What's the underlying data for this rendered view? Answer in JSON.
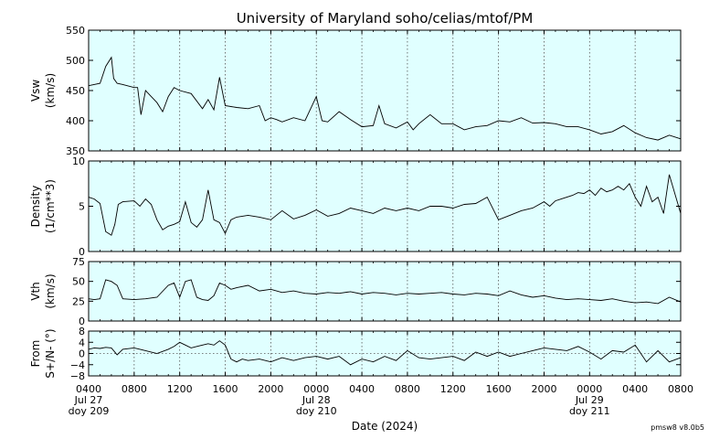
{
  "chart_data": {
    "type": "line",
    "title": "University of Maryland  soho/celias/mtof/PM",
    "xlabel": "Date (2024)",
    "version": "pmsw8 v8.0b5",
    "x_ticks": [
      {
        "label": "0400",
        "sub1": "Jul 27",
        "sub2": "doy 209"
      },
      {
        "label": "0800"
      },
      {
        "label": "1200"
      },
      {
        "label": "1600"
      },
      {
        "label": "2000"
      },
      {
        "label": "0000",
        "sub1": "Jul 28",
        "sub2": "doy 210"
      },
      {
        "label": "0400"
      },
      {
        "label": "0800"
      },
      {
        "label": "1200"
      },
      {
        "label": "1600"
      },
      {
        "label": "2000"
      },
      {
        "label": "0000",
        "sub1": "Jul 29",
        "sub2": "doy 211"
      },
      {
        "label": "0400"
      },
      {
        "label": "0800"
      }
    ],
    "x_range_hours": [
      0,
      52
    ],
    "panels": [
      {
        "ylabel": "Vsw",
        "yunit": "(km/s)",
        "ylim": [
          350,
          550
        ],
        "yticks": [
          "350",
          "400",
          "450",
          "500",
          "550"
        ],
        "ytick_values": [
          350,
          400,
          450,
          500,
          550
        ],
        "zero_line": false,
        "x": [
          0,
          1,
          1.5,
          2,
          2.2,
          2.5,
          3,
          4,
          4.3,
          4.6,
          5,
          5.5,
          6,
          6.5,
          7,
          7.5,
          8,
          9,
          10,
          10.5,
          11,
          11.5,
          12,
          13,
          14,
          15,
          15.5,
          16,
          16.5,
          17,
          18,
          19,
          20,
          20.5,
          21,
          22,
          23,
          24,
          25,
          25.5,
          26,
          27,
          28,
          28.5,
          29,
          30,
          31,
          32,
          33,
          34,
          35,
          36,
          37,
          38,
          39,
          40,
          41,
          42,
          43,
          44,
          45,
          46,
          47,
          48,
          49,
          50,
          51,
          52
        ],
        "y": [
          458,
          462,
          490,
          505,
          470,
          462,
          460,
          455,
          455,
          410,
          450,
          440,
          430,
          415,
          440,
          455,
          450,
          445,
          420,
          435,
          418,
          472,
          425,
          422,
          420,
          425,
          400,
          405,
          402,
          398,
          405,
          400,
          440,
          400,
          398,
          415,
          402,
          390,
          392,
          425,
          395,
          388,
          398,
          385,
          395,
          410,
          395,
          395,
          385,
          390,
          392,
          400,
          398,
          405,
          396,
          397,
          395,
          390,
          390,
          385,
          378,
          382,
          392,
          380,
          372,
          368,
          376,
          370
        ]
      },
      {
        "ylabel": "Density",
        "yunit": "(1/cm**3)",
        "ylim": [
          0,
          10
        ],
        "yticks": [
          "0",
          "5",
          "10"
        ],
        "ytick_values": [
          0,
          5,
          10
        ],
        "zero_line": false,
        "x": [
          0,
          0.5,
          1,
          1.5,
          2,
          2.3,
          2.6,
          3,
          4,
          4.5,
          5,
          5.5,
          6,
          6.5,
          7,
          7.5,
          8,
          8.5,
          9,
          9.5,
          10,
          10.5,
          11,
          11.5,
          12,
          12.5,
          13,
          14,
          15,
          16,
          17,
          18,
          19,
          20,
          21,
          22,
          23,
          24,
          25,
          26,
          27,
          28,
          29,
          30,
          31,
          32,
          33,
          34,
          35,
          36,
          37,
          38,
          39,
          40,
          40.5,
          41,
          41.5,
          42,
          42.5,
          43,
          43.5,
          44,
          44.5,
          45,
          45.5,
          46,
          46.5,
          47,
          47.5,
          48,
          48.5,
          49,
          49.5,
          50,
          50.5,
          51,
          52
        ],
        "y": [
          6.0,
          5.8,
          5.3,
          2.2,
          1.8,
          3.0,
          5.2,
          5.5,
          5.6,
          5.0,
          5.8,
          5.2,
          3.5,
          2.4,
          2.8,
          3.0,
          3.3,
          5.5,
          3.2,
          2.7,
          3.5,
          6.8,
          3.5,
          3.2,
          2.0,
          3.5,
          3.8,
          4.0,
          3.8,
          3.5,
          4.5,
          3.6,
          4.0,
          4.6,
          3.9,
          4.2,
          4.8,
          4.5,
          4.2,
          4.8,
          4.5,
          4.8,
          4.5,
          5.0,
          5.0,
          4.8,
          5.2,
          5.3,
          6.0,
          3.5,
          4.0,
          4.5,
          4.8,
          5.5,
          5.0,
          5.6,
          5.8,
          6.0,
          6.2,
          6.5,
          6.4,
          6.8,
          6.2,
          7.0,
          6.6,
          6.8,
          7.2,
          6.8,
          7.5,
          6.0,
          5.0,
          7.2,
          5.5,
          6.0,
          4.2,
          8.5,
          4.2
        ]
      },
      {
        "ylabel": "Vth",
        "yunit": "(km/s)",
        "ylim": [
          0,
          75
        ],
        "yticks": [
          "0",
          "25",
          "50",
          "75"
        ],
        "ytick_values": [
          0,
          25,
          50,
          75
        ],
        "zero_line": false,
        "x": [
          0,
          0.5,
          1,
          1.5,
          2,
          2.5,
          3,
          4,
          5,
          6,
          7,
          7.5,
          8,
          8.5,
          9,
          9.5,
          10,
          10.5,
          11,
          11.5,
          12,
          12.5,
          13,
          14,
          15,
          16,
          17,
          18,
          19,
          20,
          21,
          22,
          23,
          24,
          25,
          26,
          27,
          28,
          29,
          30,
          31,
          32,
          33,
          34,
          35,
          36,
          37,
          38,
          39,
          40,
          41,
          42,
          43,
          44,
          45,
          46,
          47,
          48,
          49,
          50,
          51,
          52
        ],
        "y": [
          28,
          27,
          28,
          52,
          50,
          45,
          28,
          27,
          28,
          30,
          45,
          48,
          30,
          50,
          52,
          30,
          27,
          26,
          32,
          48,
          45,
          40,
          42,
          45,
          38,
          40,
          36,
          38,
          35,
          34,
          36,
          35,
          37,
          34,
          36,
          35,
          33,
          35,
          34,
          35,
          36,
          34,
          33,
          35,
          34,
          32,
          38,
          33,
          30,
          32,
          29,
          27,
          28,
          27,
          26,
          28,
          25,
          23,
          24,
          22,
          30,
          24
        ]
      },
      {
        "ylabel": "From",
        "yunit": "S+/N- (°)",
        "ylim": [
          -8,
          8
        ],
        "yticks": [
          "−8",
          "−4",
          "0",
          "4",
          "8"
        ],
        "ytick_values": [
          -8,
          -4,
          0,
          4,
          8
        ],
        "zero_line": true,
        "x": [
          0,
          0.5,
          1,
          1.5,
          2,
          2.5,
          3,
          4,
          5,
          6,
          7,
          7.5,
          8,
          8.5,
          9,
          9.5,
          10,
          10.5,
          11,
          11.5,
          12,
          12.5,
          13,
          13.5,
          14,
          15,
          16,
          17,
          18,
          19,
          20,
          21,
          22,
          23,
          24,
          25,
          26,
          27,
          28,
          29,
          30,
          31,
          32,
          33,
          34,
          35,
          36,
          37,
          38,
          39,
          40,
          41,
          42,
          43,
          44,
          45,
          46,
          47,
          48,
          49,
          50,
          51,
          52
        ],
        "y": [
          1.5,
          2.0,
          1.8,
          2.2,
          2.0,
          -0.5,
          1.5,
          2.0,
          1.0,
          0.0,
          1.5,
          2.5,
          4.0,
          3.0,
          2.0,
          2.5,
          3.0,
          3.5,
          3.0,
          4.5,
          3.0,
          -2.0,
          -3.0,
          -2.0,
          -2.5,
          -2.0,
          -3.0,
          -1.5,
          -2.5,
          -1.5,
          -1.0,
          -2.0,
          -1.0,
          -4.0,
          -2.0,
          -3.0,
          -1.0,
          -2.5,
          1.0,
          -1.5,
          -2.0,
          -1.5,
          -1.0,
          -2.5,
          0.5,
          -1.0,
          0.5,
          -1.0,
          0.0,
          1.0,
          2.0,
          1.5,
          1.0,
          2.5,
          0.5,
          -2.0,
          1.0,
          0.5,
          3.0,
          -3.0,
          1.0,
          -3.0,
          -1.5
        ]
      }
    ]
  }
}
